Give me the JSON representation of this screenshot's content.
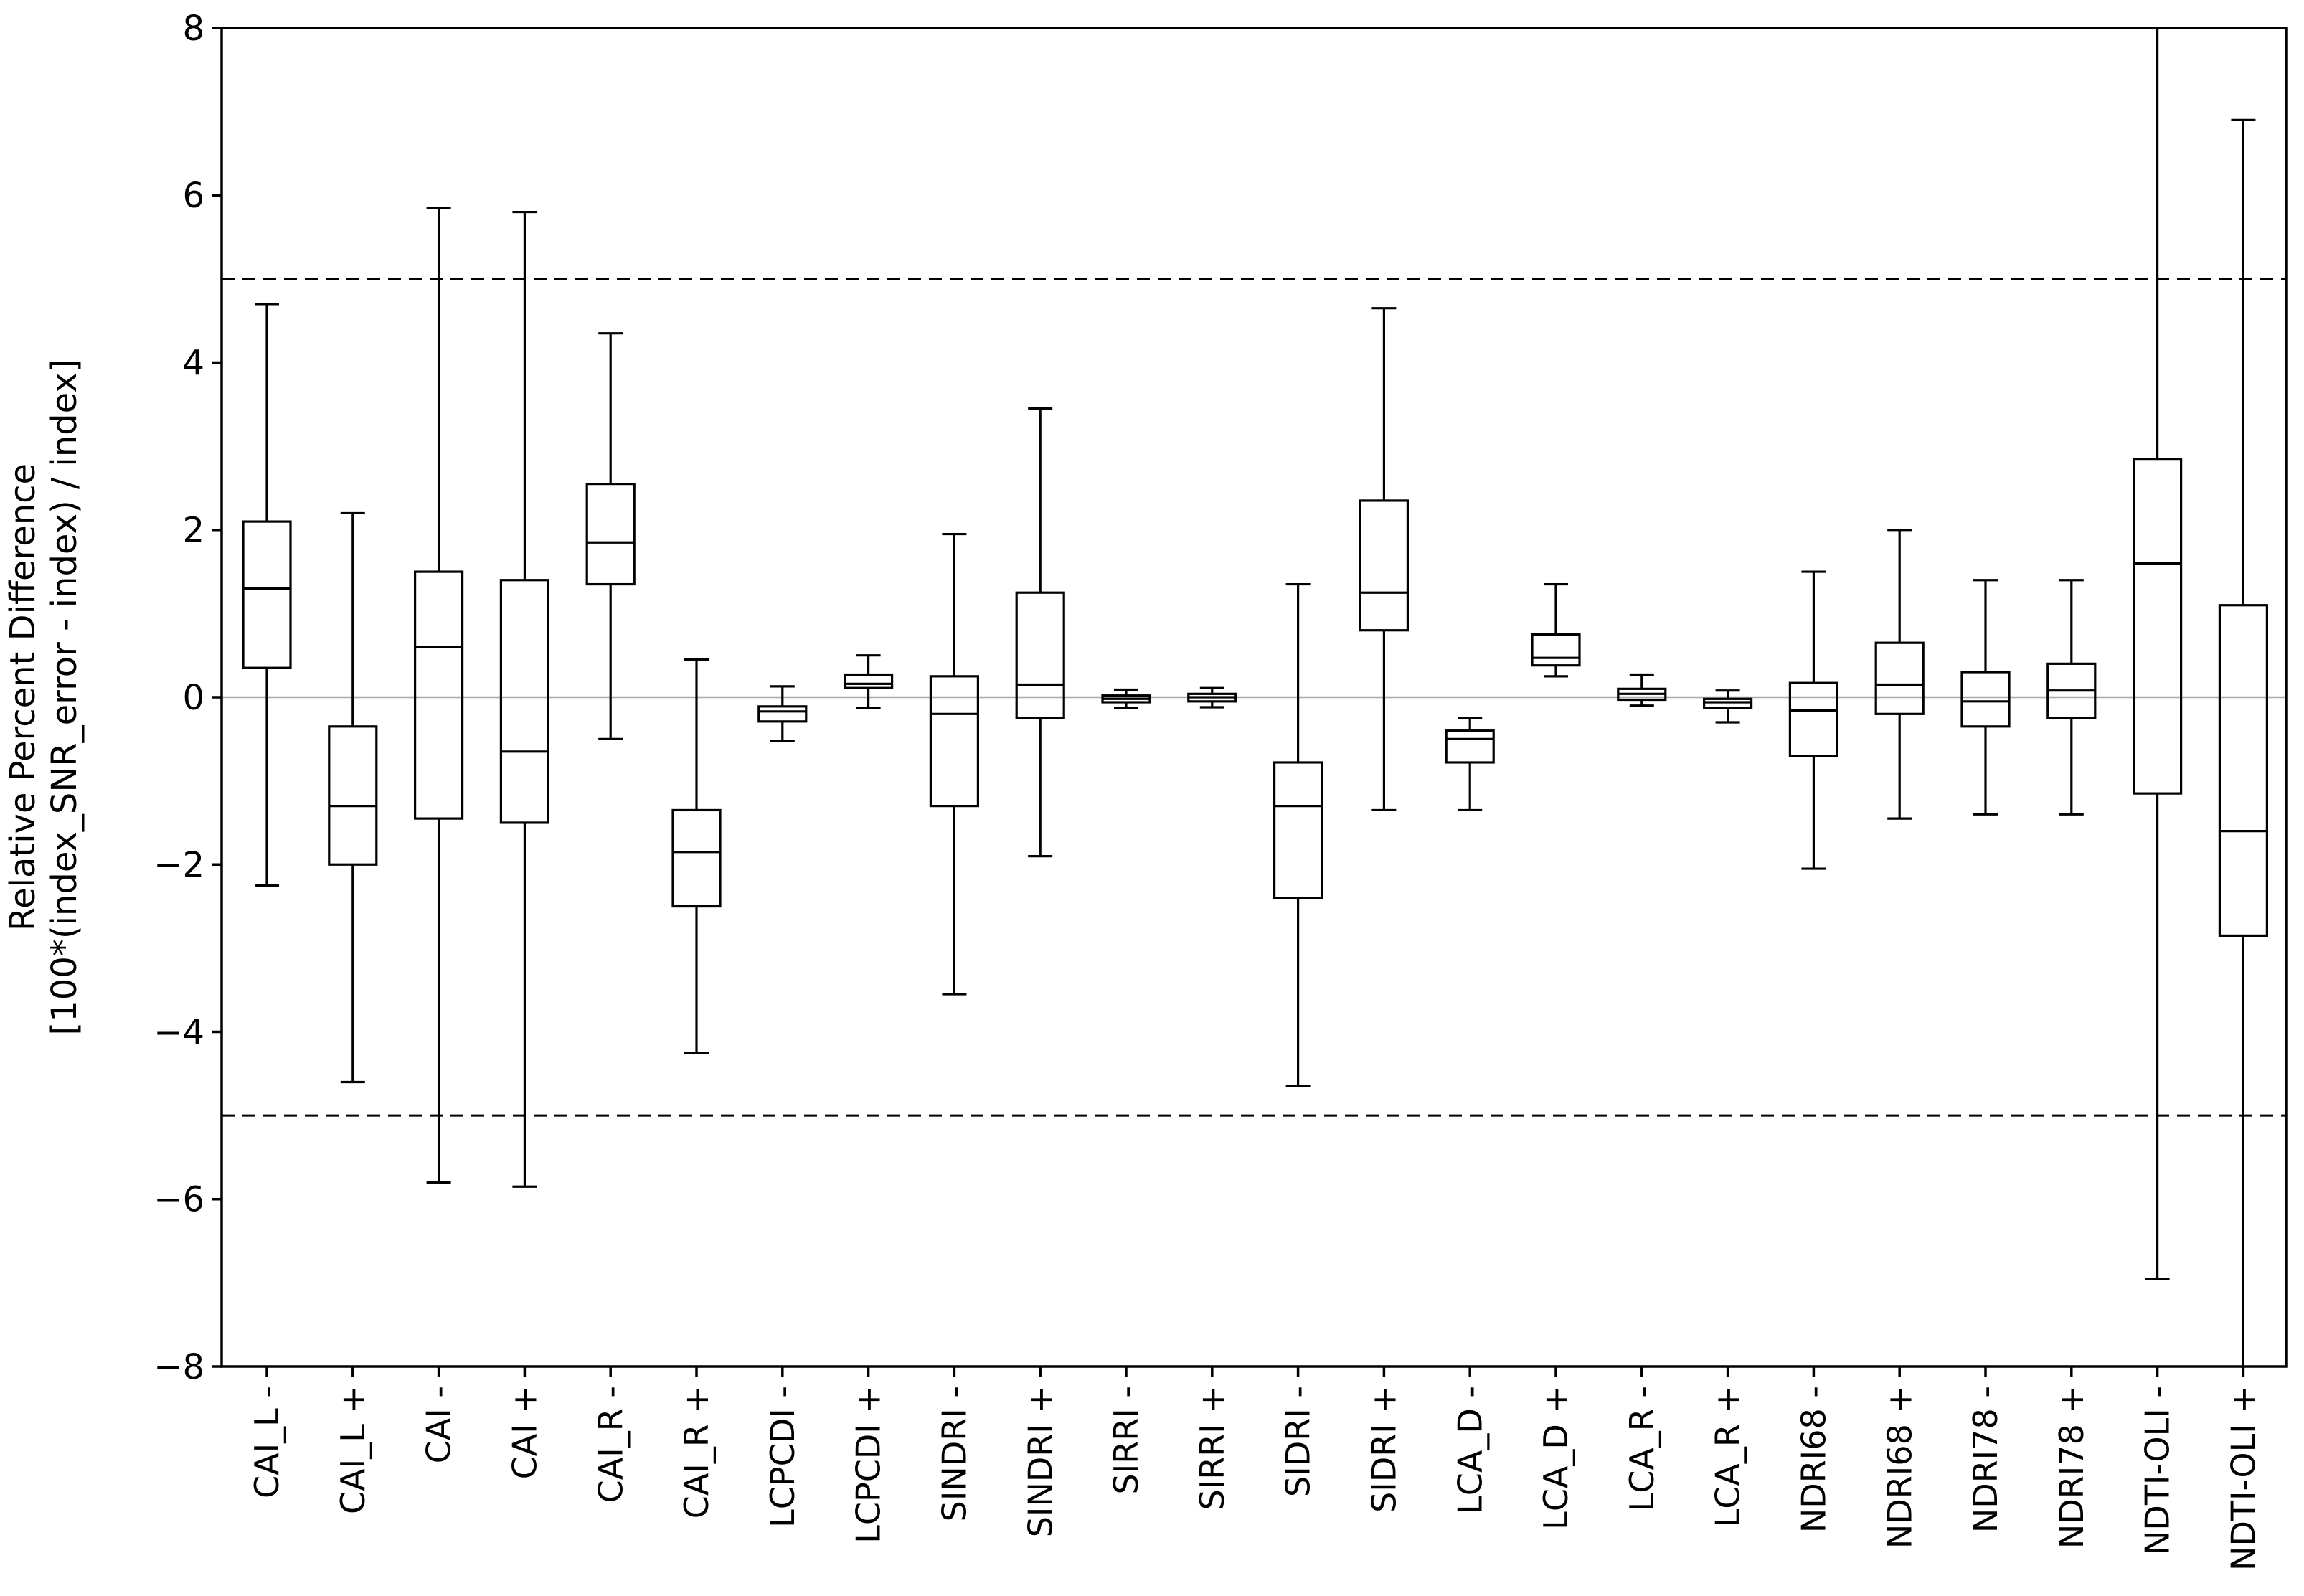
{
  "figure": {
    "ylabel_line1": "Relative Percent Difference",
    "ylabel_line2": "[100*(index_SNR_error - index) / index]",
    "background_color": "#ffffff",
    "frame_color": "#000000",
    "zero_line_color": "#aaaaaa",
    "dashed_line_color": "#000000"
  },
  "chart_data": {
    "type": "boxplot",
    "title": "",
    "xlabel": "",
    "ylabel": "Relative Percent Difference [100*(index_SNR_error - index) / index]",
    "ylim": [
      -8,
      8
    ],
    "yticks": [
      8,
      6,
      4,
      2,
      0,
      -2,
      -4,
      -6,
      -8
    ],
    "grid": false,
    "reference_lines": {
      "solid_zero": 0,
      "dashed": [
        5,
        -5
      ]
    },
    "categories": [
      "CAI_L -",
      "CAI_L +",
      "CAI -",
      "CAI +",
      "CAI_R -",
      "CAI_R +",
      "LCPCDI -",
      "LCPCDI +",
      "SINDRI -",
      "SINDRI +",
      "SIRRI -",
      "SIRRI +",
      "SIDRI -",
      "SIDRI +",
      "LCA_D -",
      "LCA_D +",
      "LCA_R -",
      "LCA_R +",
      "NDRI68 -",
      "NDRI68 +",
      "NDRI78 -",
      "NDRI78 +",
      "NDTI-OLI -",
      "NDTI-OLI +"
    ],
    "boxes": [
      {
        "label": "CAI_L -",
        "whisker_low": -2.25,
        "q1": 0.35,
        "median": 1.3,
        "q3": 2.1,
        "whisker_high": 4.7,
        "clipped_low": false,
        "clipped_high": false
      },
      {
        "label": "CAI_L +",
        "whisker_low": -4.6,
        "q1": -2.0,
        "median": -1.3,
        "q3": -0.35,
        "whisker_high": 2.2,
        "clipped_low": false,
        "clipped_high": false
      },
      {
        "label": "CAI -",
        "whisker_low": -5.8,
        "q1": -1.45,
        "median": 0.6,
        "q3": 1.5,
        "whisker_high": 5.85,
        "clipped_low": false,
        "clipped_high": false
      },
      {
        "label": "CAI +",
        "whisker_low": -5.85,
        "q1": -1.5,
        "median": -0.65,
        "q3": 1.4,
        "whisker_high": 5.8,
        "clipped_low": false,
        "clipped_high": false
      },
      {
        "label": "CAI_R -",
        "whisker_low": -0.5,
        "q1": 1.35,
        "median": 1.85,
        "q3": 2.55,
        "whisker_high": 4.35,
        "clipped_low": false,
        "clipped_high": false
      },
      {
        "label": "CAI_R +",
        "whisker_low": -4.25,
        "q1": -2.5,
        "median": -1.85,
        "q3": -1.35,
        "whisker_high": 0.45,
        "clipped_low": false,
        "clipped_high": false
      },
      {
        "label": "LCPCDI -",
        "whisker_low": -0.52,
        "q1": -0.29,
        "median": -0.17,
        "q3": -0.11,
        "whisker_high": 0.13,
        "clipped_low": false,
        "clipped_high": false
      },
      {
        "label": "LCPCDI +",
        "whisker_low": -0.13,
        "q1": 0.11,
        "median": 0.16,
        "q3": 0.27,
        "whisker_high": 0.5,
        "clipped_low": false,
        "clipped_high": false
      },
      {
        "label": "SINDRI -",
        "whisker_low": -3.55,
        "q1": -1.3,
        "median": -0.2,
        "q3": 0.25,
        "whisker_high": 1.95,
        "clipped_low": false,
        "clipped_high": false
      },
      {
        "label": "SINDRI +",
        "whisker_low": -1.9,
        "q1": -0.25,
        "median": 0.15,
        "q3": 1.25,
        "whisker_high": 3.45,
        "clipped_low": false,
        "clipped_high": false
      },
      {
        "label": "SIRRI -",
        "whisker_low": -0.13,
        "q1": -0.06,
        "median": -0.02,
        "q3": 0.02,
        "whisker_high": 0.09,
        "clipped_low": false,
        "clipped_high": false
      },
      {
        "label": "SIRRI +",
        "whisker_low": -0.12,
        "q1": -0.05,
        "median": 0.0,
        "q3": 0.04,
        "whisker_high": 0.11,
        "clipped_low": false,
        "clipped_high": false
      },
      {
        "label": "SIDRI -",
        "whisker_low": -4.65,
        "q1": -2.4,
        "median": -1.3,
        "q3": -0.78,
        "whisker_high": 1.35,
        "clipped_low": false,
        "clipped_high": false
      },
      {
        "label": "SIDRI +",
        "whisker_low": -1.35,
        "q1": 0.8,
        "median": 1.25,
        "q3": 2.35,
        "whisker_high": 4.65,
        "clipped_low": false,
        "clipped_high": false
      },
      {
        "label": "LCA_D -",
        "whisker_low": -1.35,
        "q1": -0.78,
        "median": -0.5,
        "q3": -0.4,
        "whisker_high": -0.25,
        "clipped_low": false,
        "clipped_high": false
      },
      {
        "label": "LCA_D +",
        "whisker_low": 0.25,
        "q1": 0.38,
        "median": 0.47,
        "q3": 0.75,
        "whisker_high": 1.35,
        "clipped_low": false,
        "clipped_high": false
      },
      {
        "label": "LCA_R -",
        "whisker_low": -0.1,
        "q1": -0.03,
        "median": 0.04,
        "q3": 0.1,
        "whisker_high": 0.27,
        "clipped_low": false,
        "clipped_high": false
      },
      {
        "label": "LCA_R +",
        "whisker_low": -0.3,
        "q1": -0.13,
        "median": -0.06,
        "q3": -0.02,
        "whisker_high": 0.08,
        "clipped_low": false,
        "clipped_high": false
      },
      {
        "label": "NDRI68 -",
        "whisker_low": -2.05,
        "q1": -0.7,
        "median": -0.16,
        "q3": 0.17,
        "whisker_high": 1.5,
        "clipped_low": false,
        "clipped_high": false
      },
      {
        "label": "NDRI68 +",
        "whisker_low": -1.45,
        "q1": -0.2,
        "median": 0.15,
        "q3": 0.65,
        "whisker_high": 2.0,
        "clipped_low": false,
        "clipped_high": false
      },
      {
        "label": "NDRI78 -",
        "whisker_low": -1.4,
        "q1": -0.35,
        "median": -0.05,
        "q3": 0.3,
        "whisker_high": 1.4,
        "clipped_low": false,
        "clipped_high": false
      },
      {
        "label": "NDRI78 +",
        "whisker_low": -1.4,
        "q1": -0.25,
        "median": 0.08,
        "q3": 0.4,
        "whisker_high": 1.4,
        "clipped_low": false,
        "clipped_high": false
      },
      {
        "label": "NDTI-OLI -",
        "whisker_low": -6.95,
        "q1": -1.15,
        "median": 1.6,
        "q3": 2.85,
        "whisker_high": 8.0,
        "clipped_low": false,
        "clipped_high": true
      },
      {
        "label": "NDTI-OLI +",
        "whisker_low": -8.0,
        "q1": -2.85,
        "median": -1.6,
        "q3": 1.1,
        "whisker_high": 6.9,
        "clipped_low": true,
        "clipped_high": false
      }
    ]
  }
}
